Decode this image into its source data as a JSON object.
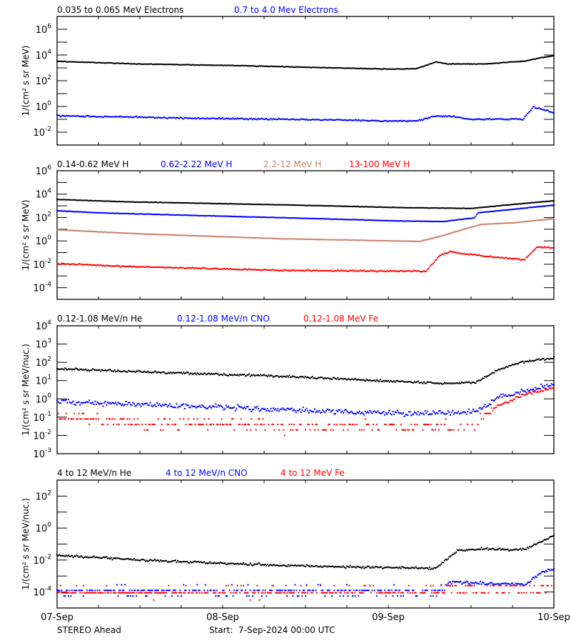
{
  "footer": {
    "spacecraft": "STEREO Ahead",
    "start": "Start:  7-Sep-2024 00:00 UTC"
  },
  "x_axis": {
    "xlim": [
      "2024-09-07 00:00",
      "2024-09-10 00:00"
    ],
    "tick_labels": [
      "07-Sep",
      "08-Sep",
      "09-Sep",
      "10-Sep"
    ],
    "minor_tick_hours": 6
  },
  "colors": {
    "black": "#000000",
    "blue": "#0000ff",
    "brown": "#c8826a",
    "red": "#ff0000"
  },
  "chart_data": [
    {
      "type": "scatter",
      "yscale": "log",
      "ylabel": "1/(cm² s sr MeV)",
      "ylim": [
        0.001,
        10000000
      ],
      "ytick_labels": [
        "10^-2",
        "10^0",
        "10^2",
        "10^4",
        "10^6"
      ],
      "grid": false,
      "legend": "top",
      "series": [
        {
          "name": "0.035 to 0.065 MeV Electrons",
          "color": "#000000",
          "points": [
            [
              "2024-09-07 00:00",
              3200
            ],
            [
              "2024-09-07 12:00",
              2000
            ],
            [
              "2024-09-08 02:00",
              1500
            ],
            [
              "2024-09-08 16:00",
              1000
            ],
            [
              "2024-09-09 00:00",
              800
            ],
            [
              "2024-09-09 04:00",
              850
            ],
            [
              "2024-09-09 07:00",
              3000
            ],
            [
              "2024-09-09 08:30",
              2000
            ],
            [
              "2024-09-09 14:00",
              2000
            ],
            [
              "2024-09-09 20:00",
              3500
            ],
            [
              "2024-09-09 22:00",
              6000
            ],
            [
              "2024-09-10 00:00",
              9000
            ]
          ]
        },
        {
          "name": "0.7 to 4.0 Mev Electrons",
          "color": "#0000ff",
          "points": [
            [
              "2024-09-07 00:00",
              0.19
            ],
            [
              "2024-09-07 20:00",
              0.12
            ],
            [
              "2024-09-08 16:00",
              0.09
            ],
            [
              "2024-09-09 04:00",
              0.07
            ],
            [
              "2024-09-09 06:30",
              0.17
            ],
            [
              "2024-09-09 09:00",
              0.17
            ],
            [
              "2024-09-09 12:00",
              0.1
            ],
            [
              "2024-09-09 19:30",
              0.1
            ],
            [
              "2024-09-09 21:00",
              0.87
            ],
            [
              "2024-09-09 22:30",
              0.6
            ],
            [
              "2024-09-10 00:00",
              0.3
            ]
          ]
        }
      ]
    },
    {
      "type": "scatter",
      "yscale": "log",
      "ylabel": "1/(cm² s sr MeV)",
      "ylim": [
        1e-05,
        1000000
      ],
      "ytick_labels": [
        "10^-4",
        "10^-2",
        "10^0",
        "10^2",
        "10^4",
        "10^6"
      ],
      "grid": false,
      "legend": "top",
      "series": [
        {
          "name": "0.14-0.62 MeV H",
          "color": "#000000",
          "points": [
            [
              "2024-09-07 00:00",
              3500
            ],
            [
              "2024-09-07 10:00",
              2200
            ],
            [
              "2024-09-08 09:00",
              1200
            ],
            [
              "2024-09-09 02:00",
              700
            ],
            [
              "2024-09-09 12:00",
              600
            ],
            [
              "2024-09-09 18:00",
              1300
            ],
            [
              "2024-09-10 00:00",
              2700
            ]
          ]
        },
        {
          "name": "0.62-2.22 MeV H",
          "color": "#0000ff",
          "points": [
            [
              "2024-09-07 00:00",
              380
            ],
            [
              "2024-09-07 06:00",
              250
            ],
            [
              "2024-09-07 20:00",
              150
            ],
            [
              "2024-09-08 09:00",
              95
            ],
            [
              "2024-09-09 02:00",
              50
            ],
            [
              "2024-09-09 08:00",
              45
            ],
            [
              "2024-09-09 12:30",
              95
            ],
            [
              "2024-09-09 13:00",
              250
            ],
            [
              "2024-09-09 18:00",
              500
            ],
            [
              "2024-09-10 00:00",
              1150
            ]
          ]
        },
        {
          "name": "2.2-12 MeV H",
          "color": "#c8826a",
          "points": [
            [
              "2024-09-07 00:00",
              9
            ],
            [
              "2024-09-07 12:00",
              4
            ],
            [
              "2024-09-08 09:00",
              1.5
            ],
            [
              "2024-09-09 04:30",
              0.9
            ],
            [
              "2024-09-09 07:30",
              2.4
            ],
            [
              "2024-09-09 11:00",
              10
            ],
            [
              "2024-09-09 13:30",
              26
            ],
            [
              "2024-09-09 18:00",
              35
            ],
            [
              "2024-09-10 00:00",
              80
            ]
          ]
        },
        {
          "name": "13-100 MeV H",
          "color": "#ff0000",
          "points": [
            [
              "2024-09-07 00:00",
              0.011
            ],
            [
              "2024-09-07 12:00",
              0.006
            ],
            [
              "2024-09-08 09:00",
              0.003
            ],
            [
              "2024-09-09 05:30",
              0.0025
            ],
            [
              "2024-09-09 07:30",
              0.06
            ],
            [
              "2024-09-09 09:00",
              0.12
            ],
            [
              "2024-09-09 11:30",
              0.07
            ],
            [
              "2024-09-09 18:00",
              0.03
            ],
            [
              "2024-09-09 19:45",
              0.024
            ],
            [
              "2024-09-09 21:30",
              0.28
            ],
            [
              "2024-09-10 00:00",
              0.26
            ]
          ]
        }
      ]
    },
    {
      "type": "scatter",
      "yscale": "log",
      "ylabel": "1/(cm² s sr MeV/nuc.)",
      "ylim": [
        0.001,
        10000
      ],
      "ytick_labels": [
        "10^-3",
        "10^-2",
        "10^-1",
        "10^0",
        "10^1",
        "10^2",
        "10^3",
        "10^4"
      ],
      "grid": false,
      "legend": "top",
      "series": [
        {
          "name": "0.12-1.08 MeV/n He",
          "color": "#000000",
          "points": [
            [
              "2024-09-07 00:00",
              45
            ],
            [
              "2024-09-07 12:00",
              30
            ],
            [
              "2024-09-08 09:00",
              17
            ],
            [
              "2024-09-09 08:00",
              7
            ],
            [
              "2024-09-09 12:45",
              8
            ],
            [
              "2024-09-09 16:00",
              40
            ],
            [
              "2024-09-09 19:30",
              110
            ],
            [
              "2024-09-10 00:00",
              170
            ]
          ]
        },
        {
          "name": "0.12-1.08 MeV/n CNO",
          "color": "#0000ff",
          "points": [
            [
              "2024-09-07 00:00",
              0.75
            ],
            [
              "2024-09-07 12:00",
              0.5
            ],
            [
              "2024-09-08 09:00",
              0.25
            ],
            [
              "2024-09-09 04:00",
              0.15
            ],
            [
              "2024-09-09 12:45",
              0.2
            ],
            [
              "2024-09-09 16:00",
              1.3
            ],
            [
              "2024-09-09 19:30",
              2.5
            ],
            [
              "2024-09-10 00:00",
              6.5
            ]
          ]
        },
        {
          "name": "0.12-1.08 MeV Fe",
          "color": "#ff0000",
          "points": [
            [
              "2024-09-07 00:00",
              0.1
            ],
            [
              "2024-09-07 12:00",
              0.05
            ],
            [
              "2024-09-08 09:00",
              0.035
            ],
            [
              "2024-09-09 12:45",
              0.03
            ],
            [
              "2024-09-09 14:00",
              0.12
            ],
            [
              "2024-09-09 16:00",
              0.45
            ],
            [
              "2024-09-09 19:30",
              1.6
            ],
            [
              "2024-09-10 00:00",
              4
            ]
          ]
        }
      ]
    },
    {
      "type": "scatter",
      "yscale": "log",
      "ylabel": "1/(cm² s sr MeV/nuc.)",
      "ylim": [
        1e-05,
        1000
      ],
      "ytick_labels": [
        "10^-4",
        "10^-2",
        "10^0",
        "10^2"
      ],
      "grid": false,
      "legend": "top",
      "series": [
        {
          "name": "4 to 12 MeV/n He",
          "color": "#000000",
          "points": [
            [
              "2024-09-07 00:00",
              0.02
            ],
            [
              "2024-09-07 12:00",
              0.01
            ],
            [
              "2024-09-08 09:00",
              0.0045
            ],
            [
              "2024-09-09 07:00",
              0.003
            ],
            [
              "2024-09-09 08:00",
              0.008
            ],
            [
              "2024-09-09 10:00",
              0.038
            ],
            [
              "2024-09-09 14:00",
              0.05
            ],
            [
              "2024-09-09 18:00",
              0.045
            ],
            [
              "2024-09-09 20:00",
              0.05
            ],
            [
              "2024-09-09 22:00",
              0.13
            ],
            [
              "2024-09-10 00:00",
              0.35
            ]
          ]
        },
        {
          "name": "4 to 12 MeV/n CNO",
          "color": "#0000ff",
          "points": [
            [
              "2024-09-07 00:00",
              0.00012
            ],
            [
              "2024-09-09 07:00",
              0.0001
            ],
            [
              "2024-09-09 09:00",
              0.0004
            ],
            [
              "2024-09-09 20:00",
              0.0003
            ],
            [
              "2024-09-09 22:00",
              0.0015
            ],
            [
              "2024-09-10 00:00",
              0.003
            ]
          ]
        },
        {
          "name": "4 to 12 MeV Fe",
          "color": "#ff0000",
          "points": [
            [
              "2024-09-07 00:00",
              0.0001
            ],
            [
              "2024-09-09 07:00",
              0.0001
            ],
            [
              "2024-09-09 09:00",
              0.00015
            ],
            [
              "2024-09-10 00:00",
              0.00015
            ]
          ]
        }
      ]
    }
  ]
}
